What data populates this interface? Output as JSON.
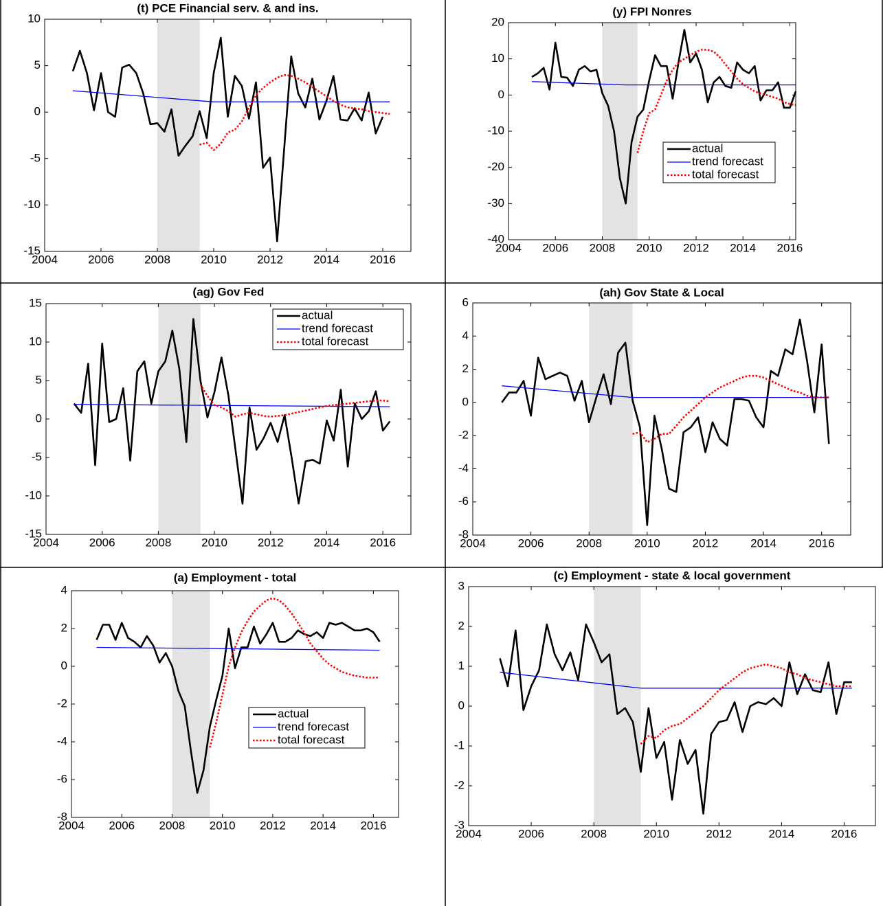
{
  "chart_data": [
    {
      "type": "line",
      "title": "(t) PCE Financial serv. & and ins.",
      "xlim": [
        2004,
        2017
      ],
      "xticks": [
        2004,
        2006,
        2008,
        2010,
        2012,
        2014,
        2016
      ],
      "ylim": [
        -15,
        10
      ],
      "yticks": [
        -15,
        -10,
        -5,
        0,
        5,
        10
      ],
      "shaded": [
        2008,
        2009.5
      ],
      "series": [
        {
          "color": "#000000",
          "x_start": 2005,
          "x_step": 0.25,
          "values": [
            4.4,
            6.6,
            4.2,
            0.2,
            4.2,
            0,
            -0.5,
            4.8,
            5.1,
            4.2,
            2,
            -1.3,
            -1.2,
            -2.1,
            0.3,
            -4.7,
            -3.6,
            -2.6,
            0.1,
            -2.8,
            4.2,
            8,
            -0.5,
            3.9,
            2.8,
            -0.7,
            3.2,
            -6,
            -4.9,
            -13.9,
            -4,
            6,
            2,
            0.5,
            3.6,
            -0.8,
            1.2,
            3.9,
            -0.8,
            -0.9,
            0.4,
            -0.9,
            2.1,
            -2.3,
            -0.5
          ]
        },
        {
          "color": "#0000ff",
          "x": [
            2005,
            2010,
            2016.25
          ],
          "values": [
            2.3,
            1.1,
            1.1
          ]
        },
        {
          "color": "#ff0000",
          "dash": "dotted",
          "x_start": 2009.5,
          "x_step": 0.25,
          "values": [
            -3.5,
            -3.3,
            -4.1,
            -3.4,
            -2.2,
            -1.9,
            -1,
            0.5,
            1.8,
            2.6,
            3.2,
            3.7,
            4,
            3.9,
            3.6,
            3.2,
            2.7,
            2.2,
            1.7,
            1.2,
            0.8,
            0.5,
            0.4,
            0.3,
            0.1,
            0,
            -0.1,
            -0.2
          ]
        }
      ]
    },
    {
      "type": "line",
      "title": "(y) FPI Nonres",
      "xlim": [
        2004,
        2016.25
      ],
      "xticks": [
        2004,
        2006,
        2008,
        2010,
        2012,
        2014,
        2016
      ],
      "ylim": [
        -40,
        20
      ],
      "yticks": [
        -40,
        -30,
        -20,
        -10,
        0,
        10,
        20
      ],
      "shaded": [
        2008,
        2009.5
      ],
      "legend": "center right",
      "series": [
        {
          "name": "actual",
          "color": "#000000",
          "x_start": 2005,
          "x_step": 0.25,
          "values": [
            5,
            6,
            7.5,
            1.5,
            14.5,
            5,
            4.8,
            2.5,
            7,
            8,
            6.5,
            7,
            0.5,
            -3,
            -10,
            -23,
            -30,
            -13,
            -6,
            -4,
            4,
            11,
            8,
            8,
            -1,
            9,
            18,
            9,
            11.5,
            7,
            -2,
            3.5,
            5,
            2.5,
            2,
            9,
            7,
            6,
            8,
            -1.5,
            1.3,
            1.3,
            3.5,
            -3.5,
            -3.5,
            1
          ]
        },
        {
          "name": "trend forecast",
          "color": "#0000ff",
          "x": [
            2005,
            2009,
            2016.25
          ],
          "values": [
            3.7,
            2.8,
            2.8
          ]
        },
        {
          "name": "total forecast",
          "color": "#ff0000",
          "dash": "dotted",
          "x_start": 2009.5,
          "x_step": 0.25,
          "values": [
            -16,
            -10,
            -5,
            -4,
            0,
            4,
            7,
            9,
            10,
            11,
            12,
            12.5,
            12.5,
            12,
            10.5,
            8.5,
            6.5,
            4.5,
            3,
            2,
            1,
            0.5,
            0,
            -0.5,
            -1,
            -2,
            -2.5,
            -2.8
          ]
        }
      ]
    },
    {
      "type": "line",
      "title": "(ag) Gov Fed",
      "xlim": [
        2004,
        2017
      ],
      "xticks": [
        2004,
        2006,
        2008,
        2010,
        2012,
        2014,
        2016
      ],
      "ylim": [
        -15,
        15
      ],
      "yticks": [
        -15,
        -10,
        -5,
        0,
        5,
        10,
        15
      ],
      "shaded": [
        2008,
        2009.5
      ],
      "legend": "upper right",
      "series": [
        {
          "name": "actual",
          "color": "#000000",
          "x_start": 2005,
          "x_step": 0.25,
          "values": [
            2,
            0.8,
            7.2,
            -6,
            9.8,
            -0.4,
            0,
            4,
            -5.4,
            6.2,
            7.5,
            2,
            6.2,
            7.5,
            11.5,
            6.5,
            -3,
            13,
            5,
            0.2,
            3.5,
            8,
            3,
            -4,
            -11,
            1.5,
            -4,
            -2.5,
            -0.5,
            -3,
            0.5,
            -5,
            -11,
            -5.5,
            -5.3,
            -5.8,
            -0.2,
            -2.8,
            3.8,
            -6.2,
            2,
            0,
            1,
            3.6,
            -1.5,
            -0.3
          ]
        },
        {
          "name": "trend forecast",
          "color": "#0000ff",
          "x": [
            2005,
            2016.25
          ],
          "values": [
            1.9,
            1.6
          ]
        },
        {
          "name": "total forecast",
          "color": "#ff0000",
          "dash": "dotted",
          "x_start": 2009.5,
          "x_step": 0.25,
          "values": [
            4.5,
            3,
            1.8,
            1.5,
            1,
            0.3,
            0.6,
            0.8,
            0.6,
            0.4,
            0.3,
            0.4,
            0.5,
            0.7,
            0.9,
            1.1,
            1.3,
            1.5,
            1.7,
            1.8,
            1.9,
            2,
            2.1,
            2.2,
            2.3,
            2.4,
            2.4,
            2.3
          ]
        }
      ]
    },
    {
      "type": "line",
      "title": "(ah) Gov State & Local",
      "xlim": [
        2004,
        2017
      ],
      "xticks": [
        2004,
        2006,
        2008,
        2010,
        2012,
        2014,
        2016
      ],
      "ylim": [
        -8,
        6
      ],
      "yticks": [
        -8,
        -6,
        -4,
        -2,
        0,
        2,
        4,
        6
      ],
      "shaded": [
        2008,
        2009.5
      ],
      "series": [
        {
          "color": "#000000",
          "x_start": 2005,
          "x_step": 0.25,
          "values": [
            0,
            0.6,
            0.6,
            1.3,
            -0.8,
            2.7,
            1.4,
            1.6,
            1.8,
            1.6,
            0.1,
            1.3,
            -1.2,
            0.3,
            1.7,
            -0.1,
            3,
            3.6,
            0.1,
            -1.5,
            -7.4,
            -0.8,
            -2.8,
            -5.2,
            -5.4,
            -1.8,
            -1.5,
            -0.9,
            -3,
            -1.2,
            -2.2,
            -2.6,
            0.2,
            0.2,
            0.1,
            -0.9,
            -1.5,
            1.9,
            1.6,
            3.2,
            2.9,
            5,
            2.5,
            -0.6,
            3.5,
            -2.5
          ]
        },
        {
          "color": "#0000ff",
          "x": [
            2005,
            2009.5,
            2016.25
          ],
          "values": [
            1,
            0.3,
            0.3
          ]
        },
        {
          "color": "#ff0000",
          "dash": "dotted",
          "x_start": 2009.5,
          "x_step": 0.25,
          "values": [
            -1.9,
            -1.8,
            -2.4,
            -2.2,
            -1.9,
            -1.9,
            -1.4,
            -0.9,
            -0.5,
            -0.1,
            0.3,
            0.6,
            0.9,
            1.1,
            1.3,
            1.5,
            1.6,
            1.6,
            1.5,
            1.3,
            1.1,
            0.9,
            0.7,
            0.6,
            0.4,
            0.3,
            0.3,
            0.3
          ]
        }
      ]
    },
    {
      "type": "line",
      "title": "(a) Employment - total",
      "xlim": [
        2004,
        2017
      ],
      "xticks": [
        2004,
        2006,
        2008,
        2010,
        2012,
        2014,
        2016
      ],
      "ylim": [
        -8,
        4
      ],
      "yticks": [
        -8,
        -6,
        -4,
        -2,
        0,
        2,
        4
      ],
      "shaded": [
        2008,
        2009.5
      ],
      "legend": "lower right",
      "series": [
        {
          "name": "actual",
          "color": "#000000",
          "x_start": 2005,
          "x_step": 0.25,
          "values": [
            1.4,
            2.2,
            2.2,
            1.4,
            2.3,
            1.5,
            1.3,
            1,
            1.6,
            1.1,
            0.2,
            0.7,
            0,
            -1.3,
            -2.1,
            -4.5,
            -6.7,
            -5.5,
            -3.2,
            -1.8,
            -0.5,
            2,
            -0.1,
            1,
            1,
            2.1,
            1.2,
            1.7,
            2.3,
            1.3,
            1.3,
            1.5,
            1.9,
            1.7,
            1.6,
            1.8,
            1.5,
            2.3,
            2.2,
            2.3,
            2.1,
            1.9,
            1.9,
            2,
            1.8,
            1.3
          ]
        },
        {
          "name": "trend forecast",
          "color": "#0000ff",
          "x": [
            2005,
            2016.25
          ],
          "values": [
            1,
            0.85
          ]
        },
        {
          "name": "total forecast",
          "color": "#ff0000",
          "dash": "dotted",
          "x_start": 2009.5,
          "x_step": 0.25,
          "values": [
            -4.3,
            -3,
            -1.5,
            0,
            1,
            1.8,
            2.4,
            2.9,
            3.2,
            3.5,
            3.6,
            3.5,
            3.2,
            2.8,
            2.3,
            1.8,
            1.2,
            0.8,
            0.4,
            0.1,
            -0.1,
            -0.3,
            -0.4,
            -0.5,
            -0.55,
            -0.6,
            -0.6,
            -0.6
          ]
        }
      ]
    },
    {
      "type": "line",
      "title": "(c) Employment - state & local government",
      "xlim": [
        2004,
        2017
      ],
      "xticks": [
        2004,
        2006,
        2008,
        2010,
        2012,
        2014,
        2016
      ],
      "ylim": [
        -3,
        3
      ],
      "yticks": [
        -3,
        -2,
        -1,
        0,
        1,
        2,
        3
      ],
      "shaded": [
        2008,
        2009.5
      ],
      "series": [
        {
          "color": "#000000",
          "x_start": 2005,
          "x_step": 0.25,
          "values": [
            1.2,
            0.5,
            1.9,
            -0.1,
            0.5,
            0.9,
            2.05,
            1.3,
            0.9,
            1.35,
            0.65,
            2.05,
            1.6,
            1.1,
            1.3,
            -0.2,
            -0.05,
            -0.4,
            -1.65,
            -0.05,
            -1.3,
            -0.9,
            -2.35,
            -0.85,
            -1.45,
            -1.1,
            -2.7,
            -0.7,
            -0.4,
            -0.35,
            0.1,
            -0.65,
            0,
            0.1,
            0.05,
            0.2,
            0,
            1.1,
            0.3,
            0.8,
            0.4,
            0.35,
            1.1,
            -0.2,
            0.6,
            0.6
          ]
        },
        {
          "color": "#0000ff",
          "x": [
            2005,
            2009.5,
            2016.25
          ],
          "values": [
            0.85,
            0.45,
            0.45
          ]
        },
        {
          "color": "#ff0000",
          "dash": "dotted",
          "x_start": 2009.5,
          "x_step": 0.25,
          "values": [
            -0.95,
            -0.75,
            -0.8,
            -0.6,
            -0.5,
            -0.45,
            -0.3,
            -0.15,
            0,
            0.2,
            0.4,
            0.55,
            0.7,
            0.85,
            0.95,
            1,
            1.05,
            1,
            0.95,
            0.85,
            0.8,
            0.7,
            0.65,
            0.6,
            0.55,
            0.5,
            0.5,
            0.5
          ]
        }
      ]
    }
  ]
}
